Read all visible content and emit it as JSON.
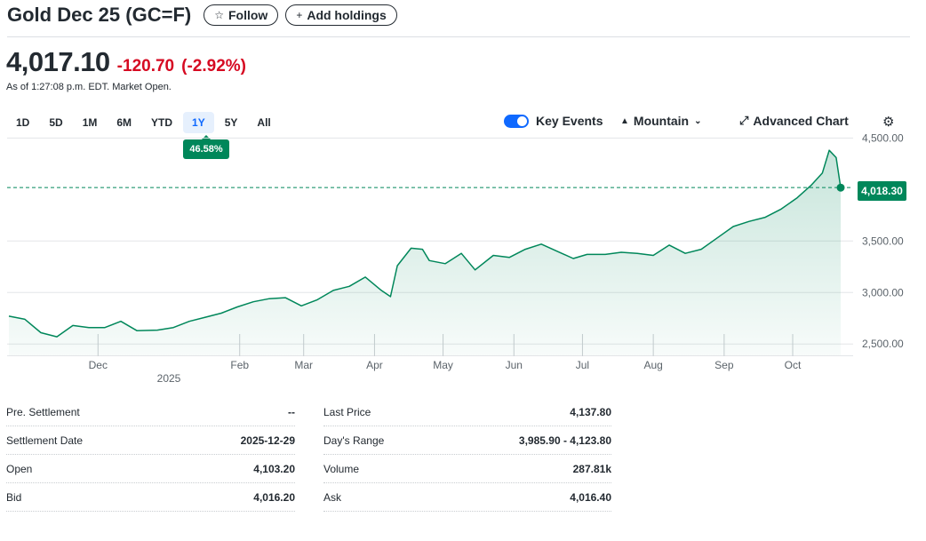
{
  "header": {
    "title": "Gold Dec 25 (GC=F)",
    "follow_icon": "star-icon",
    "follow_label": "Follow",
    "holdings_icon": "plus-icon",
    "holdings_label": "Add holdings"
  },
  "quote": {
    "price": "4,017.10",
    "change": "-120.70",
    "change_percent": "(-2.92%)",
    "as_of": "As of 1:27:08 p.m. EDT. Market Open.",
    "change_color": "#d60a22"
  },
  "ranges": [
    "1D",
    "5D",
    "1M",
    "6M",
    "YTD",
    "1Y",
    "5Y",
    "All"
  ],
  "active_range": "1Y",
  "range_badge": "46.58%",
  "tools": {
    "key_events_label": "Key Events",
    "key_events_on": true,
    "chart_type_label": "Mountain",
    "advanced_label": "Advanced Chart",
    "settings_icon": "gear-icon"
  },
  "price_tag": "4,018.30",
  "chart_data": {
    "type": "area",
    "series": [
      {
        "x": [
          "2024-10-23",
          "2024-10-30",
          "2024-11-06",
          "2024-11-13",
          "2024-11-20",
          "2024-11-27",
          "2024-12-04",
          "2024-12-11",
          "2024-12-18",
          "2024-12-27",
          "2025-01-03",
          "2025-01-10",
          "2025-01-17",
          "2025-01-24",
          "2025-01-31",
          "2025-02-07",
          "2025-02-14",
          "2025-02-21",
          "2025-02-28",
          "2025-03-07",
          "2025-03-14",
          "2025-03-21",
          "2025-03-28",
          "2025-04-04",
          "2025-04-08",
          "2025-04-11",
          "2025-04-17",
          "2025-04-22",
          "2025-04-25",
          "2025-05-02",
          "2025-05-09",
          "2025-05-15",
          "2025-05-23",
          "2025-05-30",
          "2025-06-06",
          "2025-06-13",
          "2025-06-20",
          "2025-06-27",
          "2025-07-03",
          "2025-07-11",
          "2025-07-18",
          "2025-07-25",
          "2025-08-01",
          "2025-08-08",
          "2025-08-15",
          "2025-08-22",
          "2025-08-29",
          "2025-09-05",
          "2025-09-12",
          "2025-09-19",
          "2025-09-26",
          "2025-10-03",
          "2025-10-09",
          "2025-10-14",
          "2025-10-17",
          "2025-10-20",
          "2025-10-22"
        ],
        "values": [
          2770,
          2740,
          2610,
          2570,
          2680,
          2660,
          2660,
          2720,
          2630,
          2635,
          2660,
          2720,
          2760,
          2800,
          2860,
          2910,
          2940,
          2950,
          2870,
          2930,
          3020,
          3060,
          3150,
          3020,
          2960,
          3260,
          3430,
          3420,
          3310,
          3280,
          3380,
          3220,
          3360,
          3340,
          3420,
          3470,
          3400,
          3330,
          3370,
          3370,
          3390,
          3380,
          3360,
          3460,
          3380,
          3420,
          3530,
          3640,
          3690,
          3730,
          3810,
          3920,
          4040,
          4160,
          4380,
          4310,
          4018
        ]
      }
    ],
    "x_ticks": [
      "Dec",
      "Feb",
      "Mar",
      "Apr",
      "May",
      "Jun",
      "Jul",
      "Aug",
      "Sep",
      "Oct"
    ],
    "x_tick_dates": [
      "2024-12-01",
      "2025-02-01",
      "2025-03-01",
      "2025-04-01",
      "2025-05-01",
      "2025-06-01",
      "2025-07-01",
      "2025-08-01",
      "2025-09-01",
      "2025-10-01"
    ],
    "year_label": "2025",
    "year_label_date": "2025-01-01",
    "y_ticks": [
      "2,500.00",
      "3,000.00",
      "3,500.00",
      "4,500.00"
    ],
    "y_tick_values": [
      2500,
      3000,
      3500,
      4500
    ],
    "ylim": [
      2390,
      4520
    ],
    "xlim": [
      "2024-10-23",
      "2025-10-22"
    ],
    "reference_line": 4018.3,
    "line_color": "#00875a",
    "grid": true
  },
  "stats": {
    "left": [
      {
        "label": "Pre. Settlement",
        "value": "--"
      },
      {
        "label": "Settlement Date",
        "value": "2025-12-29"
      },
      {
        "label": "Open",
        "value": "4,103.20"
      },
      {
        "label": "Bid",
        "value": "4,016.20"
      }
    ],
    "right": [
      {
        "label": "Last Price",
        "value": "4,137.80"
      },
      {
        "label": "Day's Range",
        "value": "3,985.90 - 4,123.80"
      },
      {
        "label": "Volume",
        "value": "287.81k"
      },
      {
        "label": "Ask",
        "value": "4,016.40"
      }
    ]
  }
}
